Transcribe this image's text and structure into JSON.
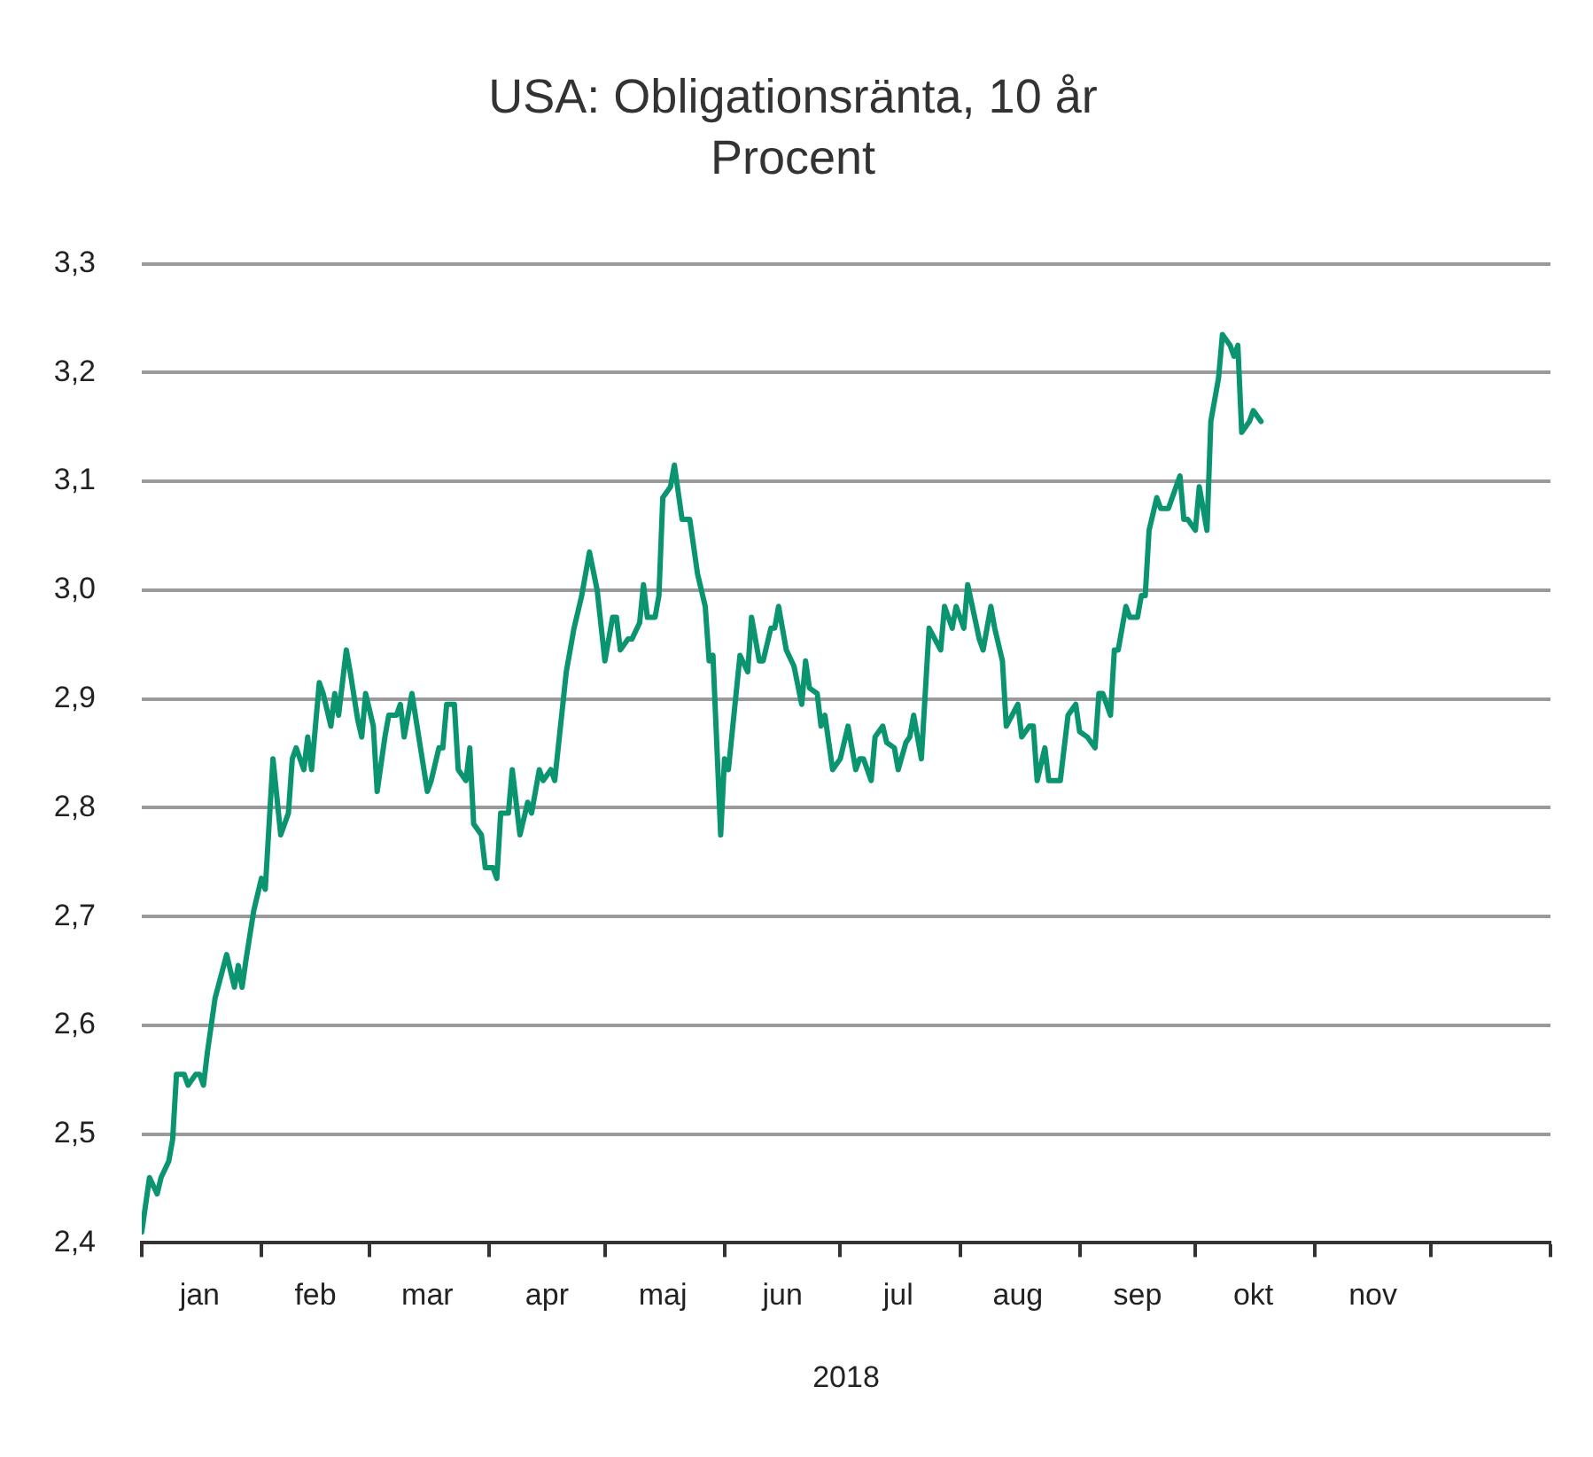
{
  "chart_data": {
    "type": "line",
    "title": "USA: Obligationsränta, 10 år",
    "subtitle": "Procent",
    "xlabel": "2018",
    "xlim": [
      "2018-01-01",
      "2019-01-01"
    ],
    "xticks": [
      {
        "value": "2018-01-01",
        "label": null
      },
      {
        "value": "2018-02-01",
        "label": null
      },
      {
        "value": "2018-03-01",
        "label": null
      },
      {
        "value": "2018-04-01",
        "label": null
      },
      {
        "value": "2018-05-01",
        "label": null
      },
      {
        "value": "2018-06-01",
        "label": null
      },
      {
        "value": "2018-07-01",
        "label": null
      },
      {
        "value": "2018-08-01",
        "label": null
      },
      {
        "value": "2018-09-01",
        "label": null
      },
      {
        "value": "2018-10-01",
        "label": null
      },
      {
        "value": "2018-11-01",
        "label": null
      },
      {
        "value": "2018-12-01",
        "label": null
      },
      {
        "value": "2019-01-01",
        "label": null
      },
      {
        "value": "2018-01-16",
        "label": "jan"
      },
      {
        "value": "2018-02-15",
        "label": "feb"
      },
      {
        "value": "2018-03-16",
        "label": "mar"
      },
      {
        "value": "2018-04-16",
        "label": "apr"
      },
      {
        "value": "2018-05-16",
        "label": "maj"
      },
      {
        "value": "2018-06-16",
        "label": "jun"
      },
      {
        "value": "2018-07-16",
        "label": "jul"
      },
      {
        "value": "2018-08-16",
        "label": "aug"
      },
      {
        "value": "2018-09-16",
        "label": "sep"
      },
      {
        "value": "2018-10-16",
        "label": "okt"
      },
      {
        "value": "2018-11-16",
        "label": "nov"
      }
    ],
    "ylim": [
      2.4,
      3.3
    ],
    "yticks": [
      {
        "value": 2.4,
        "label": "2,4"
      },
      {
        "value": 2.5,
        "label": "2,5"
      },
      {
        "value": 2.6,
        "label": "2,6"
      },
      {
        "value": 2.7,
        "label": "2,7"
      },
      {
        "value": 2.8,
        "label": "2,8"
      },
      {
        "value": 2.9,
        "label": "2,9"
      },
      {
        "value": 3.0,
        "label": "3,0"
      },
      {
        "value": 3.1,
        "label": "3,1"
      },
      {
        "value": 3.2,
        "label": "3,2"
      },
      {
        "value": 3.3,
        "label": "3,3"
      }
    ],
    "grid": "y",
    "legend": false,
    "marker": "none",
    "line_style": "solid",
    "x": [
      "2018-01-01",
      "2018-01-03",
      "2018-01-05",
      "2018-01-06",
      "2018-01-08",
      "2018-01-09",
      "2018-01-10",
      "2018-01-12",
      "2018-01-13",
      "2018-01-15",
      "2018-01-16",
      "2018-01-17",
      "2018-01-18",
      "2018-01-20",
      "2018-01-23",
      "2018-01-25",
      "2018-01-26",
      "2018-01-27",
      "2018-01-28",
      "2018-01-30",
      "2018-02-01",
      "2018-02-02",
      "2018-02-04",
      "2018-02-06",
      "2018-02-08",
      "2018-02-09",
      "2018-02-10",
      "2018-02-12",
      "2018-02-13",
      "2018-02-14",
      "2018-02-16",
      "2018-02-17",
      "2018-02-19",
      "2018-02-20",
      "2018-02-21",
      "2018-02-23",
      "2018-02-24",
      "2018-02-26",
      "2018-02-27",
      "2018-02-28",
      "2018-03-02",
      "2018-03-03",
      "2018-03-05",
      "2018-03-06",
      "2018-03-08",
      "2018-03-09",
      "2018-03-10",
      "2018-03-12",
      "2018-03-14",
      "2018-03-16",
      "2018-03-17",
      "2018-03-19",
      "2018-03-20",
      "2018-03-21",
      "2018-03-23",
      "2018-03-24",
      "2018-03-26",
      "2018-03-27",
      "2018-03-28",
      "2018-03-30",
      "2018-03-31",
      "2018-04-02",
      "2018-04-03",
      "2018-04-04",
      "2018-04-06",
      "2018-04-07",
      "2018-04-09",
      "2018-04-10",
      "2018-04-11",
      "2018-04-12",
      "2018-04-14",
      "2018-04-15",
      "2018-04-17",
      "2018-04-18",
      "2018-04-21",
      "2018-04-23",
      "2018-04-25",
      "2018-04-27",
      "2018-04-29",
      "2018-05-01",
      "2018-05-03",
      "2018-05-04",
      "2018-05-05",
      "2018-05-07",
      "2018-05-08",
      "2018-05-10",
      "2018-05-11",
      "2018-05-12",
      "2018-05-14",
      "2018-05-15",
      "2018-05-16",
      "2018-05-18",
      "2018-05-19",
      "2018-05-21",
      "2018-05-23",
      "2018-05-25",
      "2018-05-27",
      "2018-05-28",
      "2018-05-29",
      "2018-05-31",
      "2018-06-01",
      "2018-06-02",
      "2018-06-05",
      "2018-06-07",
      "2018-06-08",
      "2018-06-10",
      "2018-06-11",
      "2018-06-13",
      "2018-06-14",
      "2018-06-15",
      "2018-06-17",
      "2018-06-19",
      "2018-06-21",
      "2018-06-22",
      "2018-06-23",
      "2018-06-25",
      "2018-06-26",
      "2018-06-27",
      "2018-06-29",
      "2018-07-01",
      "2018-07-03",
      "2018-07-05",
      "2018-07-06",
      "2018-07-07",
      "2018-07-09",
      "2018-07-10",
      "2018-07-12",
      "2018-07-13",
      "2018-07-15",
      "2018-07-16",
      "2018-07-18",
      "2018-07-19",
      "2018-07-20",
      "2018-07-22",
      "2018-07-24",
      "2018-07-27",
      "2018-07-28",
      "2018-07-30",
      "2018-07-31",
      "2018-08-02",
      "2018-08-03",
      "2018-08-06",
      "2018-08-07",
      "2018-08-09",
      "2018-08-10",
      "2018-08-12",
      "2018-08-13",
      "2018-08-16",
      "2018-08-17",
      "2018-08-19",
      "2018-08-20",
      "2018-08-21",
      "2018-08-23",
      "2018-08-24",
      "2018-08-27",
      "2018-08-29",
      "2018-08-31",
      "2018-09-01",
      "2018-09-03",
      "2018-09-05",
      "2018-09-06",
      "2018-09-07",
      "2018-09-09",
      "2018-09-10",
      "2018-09-11",
      "2018-09-13",
      "2018-09-14",
      "2018-09-16",
      "2018-09-17",
      "2018-09-18",
      "2018-09-19",
      "2018-09-21",
      "2018-09-22",
      "2018-09-24",
      "2018-09-25",
      "2018-09-27",
      "2018-09-28",
      "2018-09-29",
      "2018-10-01",
      "2018-10-02",
      "2018-10-04",
      "2018-10-05",
      "2018-10-07",
      "2018-10-08",
      "2018-10-10",
      "2018-10-11",
      "2018-10-12",
      "2018-10-13",
      "2018-10-15",
      "2018-10-16",
      "2018-10-18"
    ],
    "series": [
      {
        "color": "#0a9470",
        "values": [
          2.41,
          2.46,
          2.445,
          2.46,
          2.475,
          2.495,
          2.555,
          2.555,
          2.545,
          2.555,
          2.555,
          2.545,
          2.575,
          2.625,
          2.665,
          2.635,
          2.655,
          2.635,
          2.66,
          2.705,
          2.735,
          2.725,
          2.845,
          2.775,
          2.795,
          2.845,
          2.855,
          2.835,
          2.865,
          2.835,
          2.915,
          2.905,
          2.875,
          2.905,
          2.885,
          2.945,
          2.925,
          2.88,
          2.865,
          2.905,
          2.875,
          2.815,
          2.865,
          2.885,
          2.885,
          2.895,
          2.865,
          2.905,
          2.86,
          2.815,
          2.825,
          2.855,
          2.855,
          2.895,
          2.895,
          2.835,
          2.825,
          2.855,
          2.785,
          2.775,
          2.745,
          2.745,
          2.735,
          2.795,
          2.795,
          2.835,
          2.775,
          2.79,
          2.805,
          2.795,
          2.835,
          2.825,
          2.835,
          2.825,
          2.925,
          2.965,
          2.995,
          3.035,
          3.0,
          2.935,
          2.975,
          2.975,
          2.945,
          2.955,
          2.955,
          2.97,
          3.005,
          2.975,
          2.975,
          2.995,
          3.085,
          3.095,
          3.115,
          3.065,
          3.065,
          3.015,
          2.985,
          2.935,
          2.94,
          2.775,
          2.845,
          2.835,
          2.94,
          2.925,
          2.975,
          2.935,
          2.935,
          2.965,
          2.965,
          2.985,
          2.945,
          2.93,
          2.895,
          2.935,
          2.91,
          2.905,
          2.875,
          2.885,
          2.835,
          2.845,
          2.875,
          2.835,
          2.845,
          2.845,
          2.825,
          2.865,
          2.875,
          2.86,
          2.855,
          2.835,
          2.86,
          2.865,
          2.885,
          2.845,
          2.965,
          2.945,
          2.985,
          2.965,
          2.985,
          2.965,
          3.005,
          2.955,
          2.945,
          2.985,
          2.965,
          2.935,
          2.875,
          2.895,
          2.865,
          2.875,
          2.875,
          2.825,
          2.855,
          2.825,
          2.825,
          2.885,
          2.895,
          2.87,
          2.865,
          2.855,
          2.905,
          2.905,
          2.885,
          2.945,
          2.945,
          2.985,
          2.975,
          2.975,
          2.995,
          2.995,
          3.055,
          3.085,
          3.075,
          3.075,
          3.085,
          3.105,
          3.065,
          3.065,
          3.055,
          3.095,
          3.055,
          3.155,
          3.195,
          3.235,
          3.225,
          3.215,
          3.225,
          3.145,
          3.155,
          3.165,
          3.155
        ]
      }
    ]
  }
}
